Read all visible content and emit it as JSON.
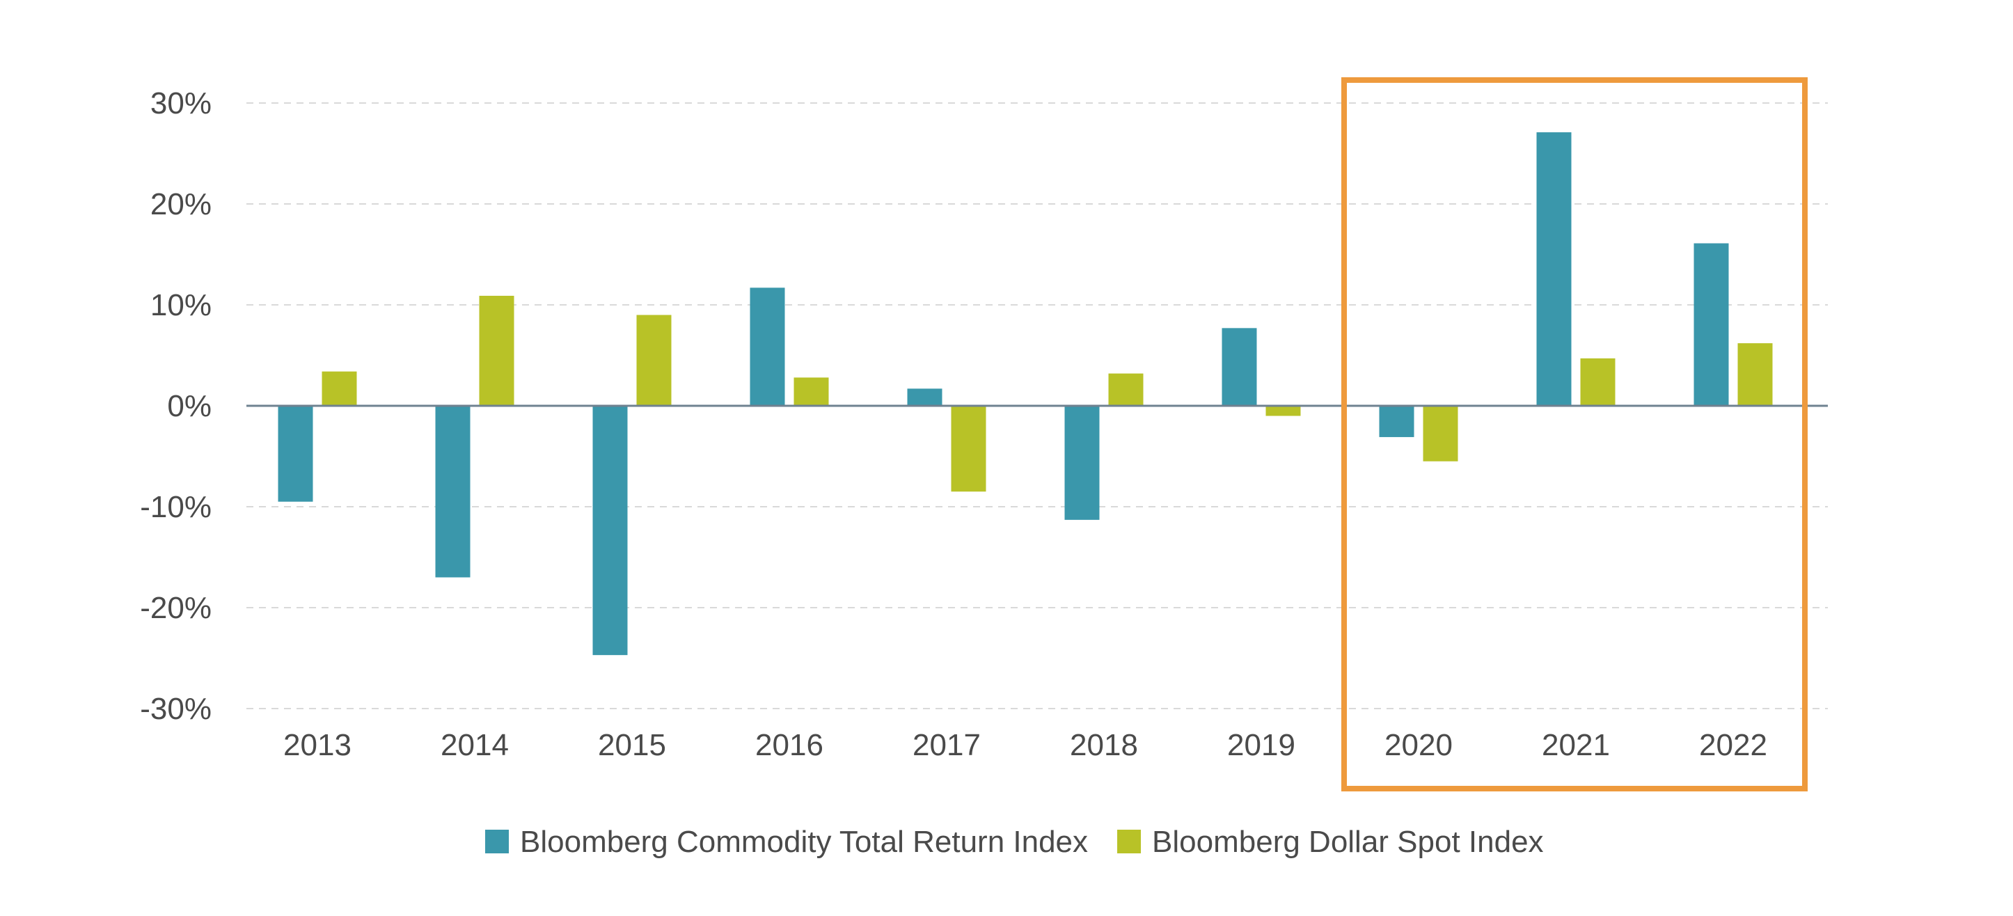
{
  "chart_data": {
    "type": "bar",
    "categories": [
      "2013",
      "2014",
      "2015",
      "2016",
      "2017",
      "2018",
      "2019",
      "2020",
      "2021",
      "2022"
    ],
    "series": [
      {
        "name": "Bloomberg Commodity Total Return Index",
        "color": "#3a97ab",
        "values": [
          -9.5,
          -17.0,
          -24.7,
          11.7,
          1.7,
          -11.3,
          7.7,
          -3.1,
          27.1,
          16.1
        ]
      },
      {
        "name": "Bloomberg Dollar Spot Index",
        "color": "#b8c227",
        "values": [
          3.4,
          10.9,
          9.0,
          2.8,
          -8.5,
          3.2,
          -1.0,
          -5.5,
          4.7,
          6.2
        ]
      }
    ],
    "yticks": [
      "30%",
      "20%",
      "10%",
      "0%",
      "-10%",
      "-20%",
      "-30%"
    ],
    "ylim": [
      -30,
      30
    ],
    "grid": true,
    "legend_position": "bottom",
    "highlight": {
      "categories": [
        "2020",
        "2021",
        "2022"
      ],
      "color": "#ee9a3d"
    }
  }
}
